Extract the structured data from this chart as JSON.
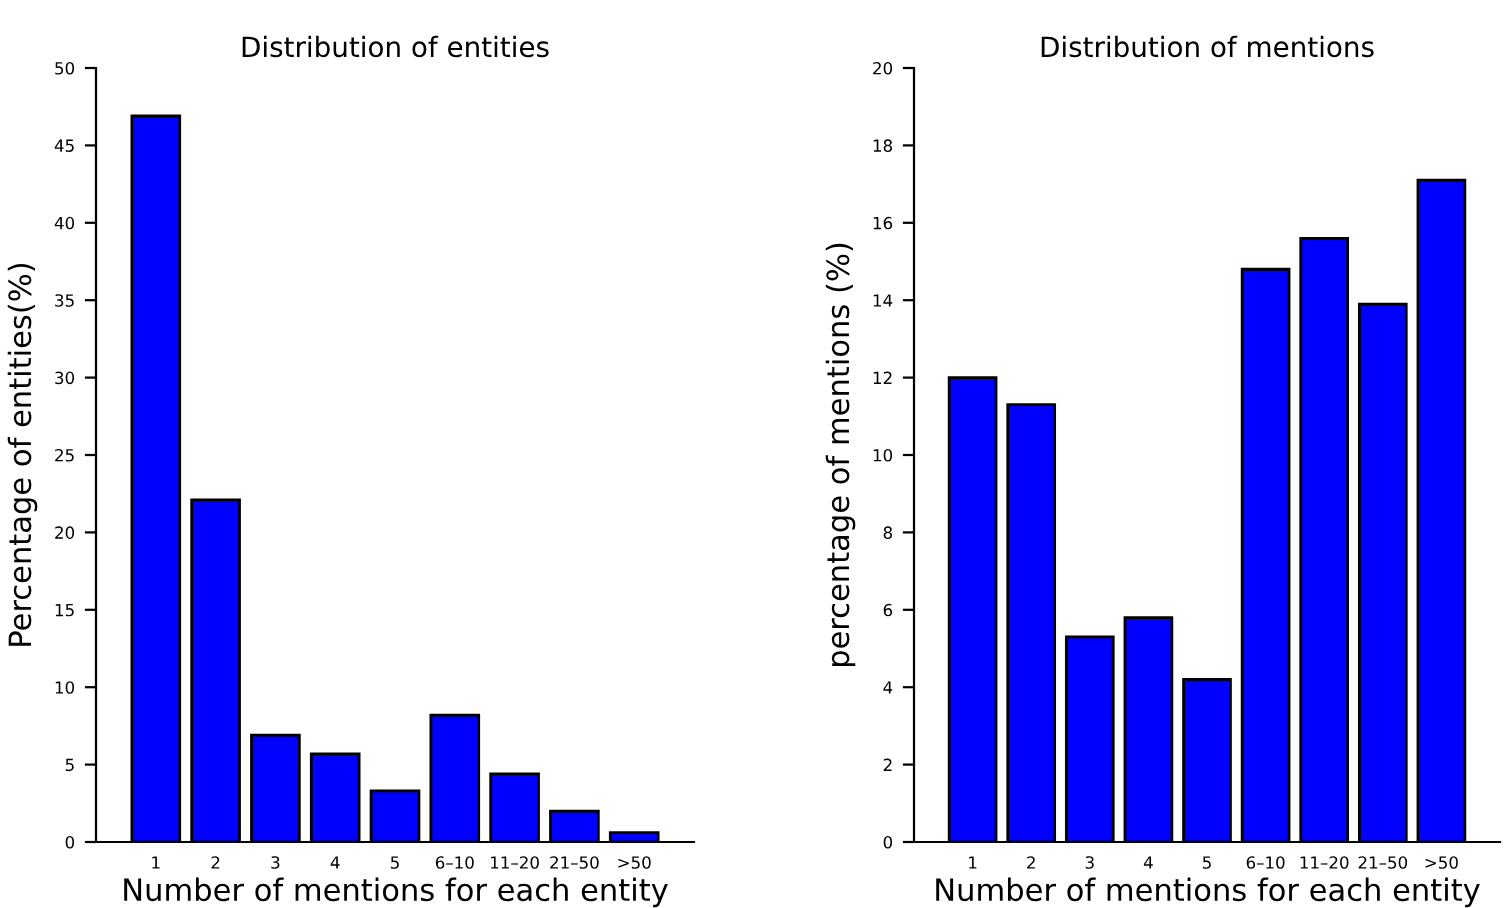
{
  "chart_data": [
    {
      "type": "bar",
      "title": "Distribution of entities",
      "xlabel": "Number of mentions for each entity",
      "ylabel": "Percentage of entities(%)",
      "categories": [
        "1",
        "2",
        "3",
        "4",
        "5",
        "6–10",
        "11–20",
        "21–50",
        ">50"
      ],
      "values": [
        46.9,
        22.1,
        6.9,
        5.7,
        3.3,
        8.2,
        4.4,
        2.0,
        0.6
      ],
      "color": "#0000ff",
      "ylim": [
        0,
        50
      ],
      "yticks": [
        0,
        5,
        10,
        15,
        20,
        25,
        30,
        35,
        40,
        45,
        50
      ],
      "grid": false,
      "legend": false
    },
    {
      "type": "bar",
      "title": "Distribution of mentions",
      "xlabel": "Number of mentions for each entity",
      "ylabel": "percentage of mentions (%)",
      "categories": [
        "1",
        "2",
        "3",
        "4",
        "5",
        "6–10",
        "11–20",
        "21–50",
        ">50"
      ],
      "values": [
        12.0,
        11.3,
        5.3,
        5.8,
        4.2,
        14.8,
        15.6,
        13.9,
        17.1
      ],
      "color": "#0000ff",
      "ylim": [
        0,
        20
      ],
      "yticks": [
        0,
        2,
        4,
        6,
        8,
        10,
        12,
        14,
        16,
        18,
        20
      ],
      "grid": false,
      "legend": false
    }
  ]
}
